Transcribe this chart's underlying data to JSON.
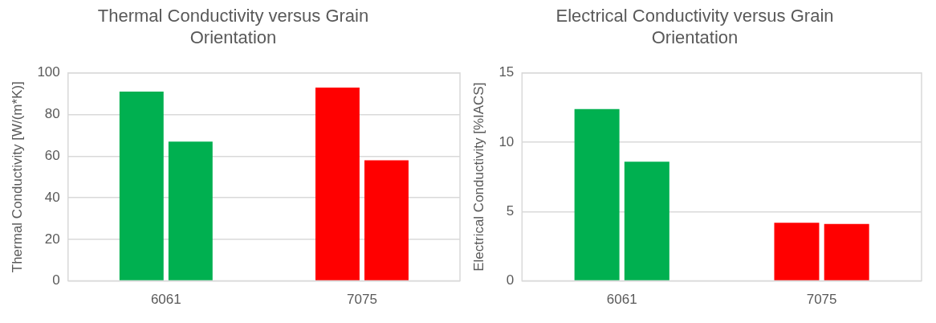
{
  "chart_data": [
    {
      "type": "bar",
      "title": "Thermal Conductivity versus Grain Orientation",
      "ylabel": "Thermal Conductivity [W/(m*K)]",
      "categories": [
        "6061",
        "7075"
      ],
      "series": [
        {
          "colors": [
            "#00b050",
            "#ff0000"
          ],
          "values": [
            91,
            93
          ]
        },
        {
          "colors": [
            "#00b050",
            "#ff0000"
          ],
          "values": [
            67,
            58
          ]
        }
      ],
      "ylim": [
        0,
        100
      ],
      "yticks": [
        0,
        20,
        40,
        60,
        80,
        100
      ],
      "grid": "y",
      "legend": false
    },
    {
      "type": "bar",
      "title": "Electrical Conductivity versus Grain Orientation",
      "ylabel": "Electrical Conductivity [%IACS]",
      "categories": [
        "6061",
        "7075"
      ],
      "series": [
        {
          "colors": [
            "#00b050",
            "#ff0000"
          ],
          "values": [
            12.4,
            4.2
          ]
        },
        {
          "colors": [
            "#00b050",
            "#ff0000"
          ],
          "values": [
            8.6,
            4.1
          ]
        }
      ],
      "ylim": [
        0,
        15
      ],
      "yticks": [
        0,
        5,
        10,
        15
      ],
      "grid": "y",
      "legend": false
    }
  ]
}
